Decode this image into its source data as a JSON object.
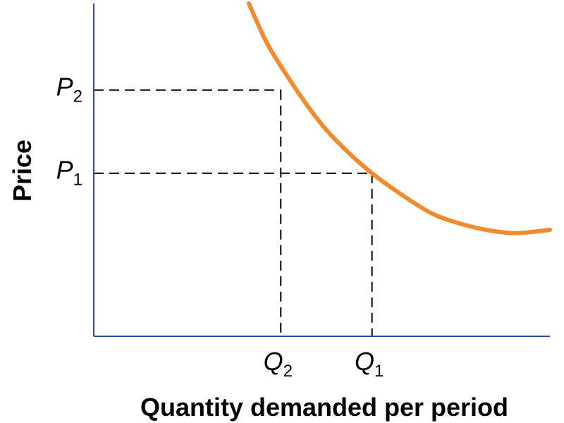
{
  "chart_data": {
    "type": "line",
    "title": "",
    "xlabel": "Quantity demanded per period",
    "ylabel": "Price",
    "grid": false,
    "legend": "none",
    "xlim": [
      0,
      100
    ],
    "ylim": [
      0,
      100
    ],
    "series": [
      {
        "color": "#f28a30",
        "points": [
          [
            34,
            100
          ],
          [
            38,
            88
          ],
          [
            43,
            77
          ],
          [
            47,
            69
          ],
          [
            51,
            62
          ],
          [
            56,
            55
          ],
          [
            61,
            49
          ],
          [
            67,
            43
          ],
          [
            74,
            37
          ],
          [
            80,
            34
          ],
          [
            86,
            32
          ],
          [
            92,
            31
          ],
          [
            97,
            31.5
          ],
          [
            100,
            32
          ]
        ]
      }
    ],
    "markers": [
      {
        "axis_label": "Q",
        "axis_sub": "1",
        "price_label": "P",
        "price_sub": "1",
        "x": 61,
        "y": 49
      },
      {
        "axis_label": "Q",
        "axis_sub": "2",
        "price_label": "P",
        "price_sub": "2",
        "x": 41,
        "y": 74
      }
    ],
    "colors": {
      "axis": "#2b4c9a",
      "curve": "#f28a30",
      "guide": "#000000"
    }
  }
}
